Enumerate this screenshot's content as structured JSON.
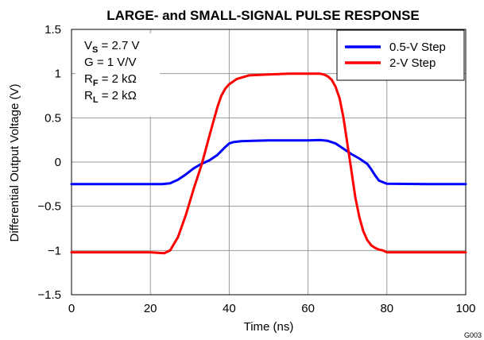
{
  "chart_data": {
    "type": "line",
    "title": "LARGE- and SMALL-SIGNAL PULSE RESPONSE",
    "xlabel": "Time (ns)",
    "ylabel": "Differential Output Voltage (V)",
    "xlim": [
      0,
      100
    ],
    "ylim": [
      -1.5,
      1.5
    ],
    "x_ticks": [
      "0",
      "20",
      "40",
      "60",
      "80",
      "100"
    ],
    "y_ticks": [
      "1.5",
      "1",
      "0.5",
      "0",
      "−0.5",
      "−1",
      "−1.5"
    ],
    "grid": true,
    "legend_position": "top-right",
    "figure_code": "G003",
    "annotations": [
      {
        "main": "V",
        "sub": "S",
        "rest": " = 2.7 V"
      },
      {
        "main": "G = 1 V/V",
        "sub": "",
        "rest": ""
      },
      {
        "main": "R",
        "sub": "F",
        "rest": " = 2 kΩ"
      },
      {
        "main": "R",
        "sub": "L",
        "rest": " = 2 kΩ"
      }
    ],
    "series": [
      {
        "name": "0.5-V Step",
        "color": "#0000ff",
        "x": [
          0,
          10,
          20,
          23,
          25,
          27,
          29,
          31,
          33,
          35,
          37,
          39,
          40,
          41,
          43,
          46,
          50,
          55,
          60,
          63,
          65,
          67,
          69,
          71,
          73,
          75,
          76,
          77,
          78,
          80,
          90,
          100
        ],
        "y": [
          -0.25,
          -0.25,
          -0.25,
          -0.25,
          -0.24,
          -0.2,
          -0.14,
          -0.07,
          -0.02,
          0.02,
          0.08,
          0.17,
          0.21,
          0.225,
          0.235,
          0.24,
          0.245,
          0.245,
          0.245,
          0.25,
          0.24,
          0.21,
          0.15,
          0.09,
          0.04,
          -0.02,
          -0.08,
          -0.15,
          -0.21,
          -0.245,
          -0.25,
          -0.25
        ]
      },
      {
        "name": "2-V Step",
        "color": "#ff0000",
        "x": [
          0,
          10,
          20,
          23.5,
          25,
          27,
          29,
          31,
          33,
          35,
          37,
          38,
          39,
          40,
          42,
          45,
          50,
          55,
          60,
          63,
          64,
          65,
          66,
          67,
          68,
          69,
          70,
          71,
          72,
          73,
          74,
          75,
          76,
          77,
          78,
          79,
          80,
          90,
          100
        ],
        "y": [
          -1.02,
          -1.02,
          -1.02,
          -1.03,
          -1.0,
          -0.85,
          -0.6,
          -0.3,
          -0.03,
          0.3,
          0.62,
          0.75,
          0.83,
          0.88,
          0.94,
          0.98,
          0.99,
          1.0,
          1.0,
          1.0,
          0.99,
          0.97,
          0.93,
          0.85,
          0.72,
          0.5,
          0.2,
          -0.1,
          -0.4,
          -0.62,
          -0.78,
          -0.88,
          -0.94,
          -0.97,
          -0.99,
          -1.0,
          -1.02,
          -1.02,
          -1.02
        ]
      }
    ]
  }
}
